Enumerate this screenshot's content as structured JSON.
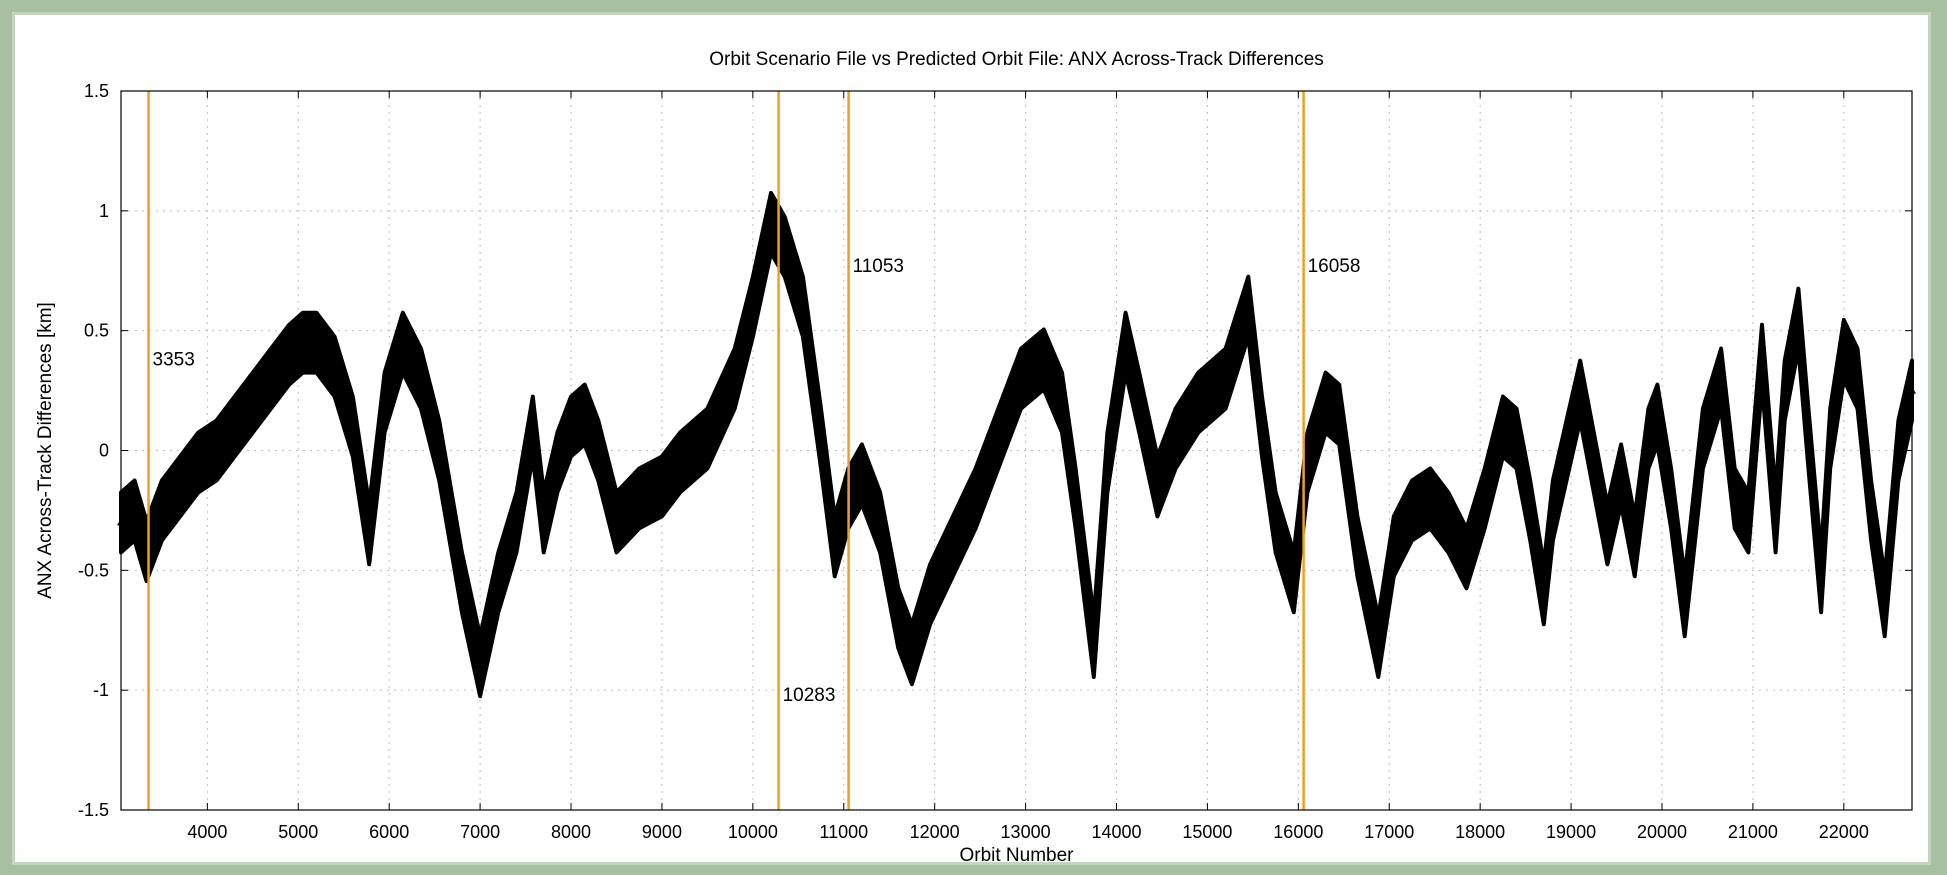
{
  "chart_data": {
    "type": "scatter",
    "title": "Orbit Scenario File vs Predicted Orbit File: ANX Across-Track Differences",
    "xlabel": "Orbit Number",
    "ylabel": "ANX Across-Track Differences [km]",
    "xlim": [
      3050,
      22750
    ],
    "ylim": [
      -1.5,
      1.5
    ],
    "grid": true,
    "marker": "triangle",
    "band_width_km": 0.25,
    "xticks": [
      4000,
      5000,
      6000,
      7000,
      8000,
      9000,
      10000,
      11000,
      12000,
      13000,
      14000,
      15000,
      16000,
      17000,
      18000,
      19000,
      20000,
      21000,
      22000
    ],
    "yticks": [
      -1.5,
      -1,
      -0.5,
      0,
      0.5,
      1,
      1.5
    ],
    "ytick_labels": [
      "-1.5",
      "-1",
      "-0.5",
      "0",
      "0.5",
      "1",
      "1.5"
    ],
    "vertical_lines": [
      {
        "x": 3353,
        "label": "3353",
        "label_y": 0.38
      },
      {
        "x": 10283,
        "label": "10283",
        "label_y": -1.02
      },
      {
        "x": 11053,
        "label": "11053",
        "label_y": 0.77
      },
      {
        "x": 16058,
        "label": "16058",
        "label_y": 0.77
      }
    ],
    "vline_color": "#f0a020",
    "series": [
      {
        "x": [
          3050,
          3200,
          3330,
          3500,
          3700,
          3900,
          4100,
          4300,
          4500,
          4700,
          4900,
          5050,
          5200,
          5400,
          5600,
          5780,
          5950,
          6150,
          6350,
          6550,
          6800,
          7000,
          7200,
          7400,
          7580,
          7700,
          7850,
          8000,
          8150,
          8300,
          8500,
          8750,
          9000,
          9200,
          9500,
          9800,
          10000,
          10200,
          10350,
          10550,
          10750,
          10900,
          11050,
          11200,
          11400,
          11600,
          11750,
          11950,
          12200,
          12450,
          12700,
          12950,
          13200,
          13400,
          13550,
          13750,
          13900,
          14100,
          14250,
          14450,
          14650,
          14900,
          15200,
          15450,
          15600,
          15750,
          15950,
          16100,
          16300,
          16450,
          16650,
          16880,
          17050,
          17250,
          17450,
          17650,
          17850,
          18050,
          18250,
          18400,
          18550,
          18700,
          18800,
          18950,
          19100,
          19250,
          19400,
          19550,
          19700,
          19850,
          19950,
          20100,
          20250,
          20450,
          20650,
          20800,
          20950,
          21100,
          21250,
          21350,
          21500,
          21600,
          21750,
          21850,
          22000,
          22150,
          22300,
          22450,
          22600,
          22750
        ],
        "y": [
          -0.3,
          -0.25,
          -0.42,
          -0.25,
          -0.15,
          -0.05,
          0.0,
          0.1,
          0.2,
          0.3,
          0.4,
          0.45,
          0.45,
          0.35,
          0.1,
          -0.35,
          0.2,
          0.45,
          0.3,
          0.0,
          -0.55,
          -0.9,
          -0.55,
          -0.3,
          0.1,
          -0.3,
          -0.05,
          0.1,
          0.15,
          0.0,
          -0.3,
          -0.2,
          -0.15,
          -0.05,
          0.05,
          0.3,
          0.6,
          0.95,
          0.85,
          0.6,
          0.05,
          -0.4,
          -0.2,
          -0.1,
          -0.3,
          -0.7,
          -0.85,
          -0.6,
          -0.4,
          -0.2,
          0.05,
          0.3,
          0.38,
          0.2,
          -0.2,
          -0.82,
          -0.05,
          0.45,
          0.2,
          -0.15,
          0.05,
          0.2,
          0.3,
          0.6,
          0.1,
          -0.3,
          -0.55,
          -0.05,
          0.2,
          0.15,
          -0.4,
          -0.82,
          -0.4,
          -0.25,
          -0.2,
          -0.3,
          -0.45,
          -0.2,
          0.1,
          0.05,
          -0.25,
          -0.6,
          -0.25,
          0.0,
          0.25,
          -0.05,
          -0.35,
          -0.1,
          -0.4,
          0.05,
          0.15,
          -0.2,
          -0.65,
          0.05,
          0.3,
          -0.2,
          -0.3,
          0.4,
          -0.3,
          0.25,
          0.55,
          0.1,
          -0.55,
          0.05,
          0.42,
          0.3,
          -0.25,
          -0.65,
          0.0,
          0.25
        ]
      }
    ]
  }
}
